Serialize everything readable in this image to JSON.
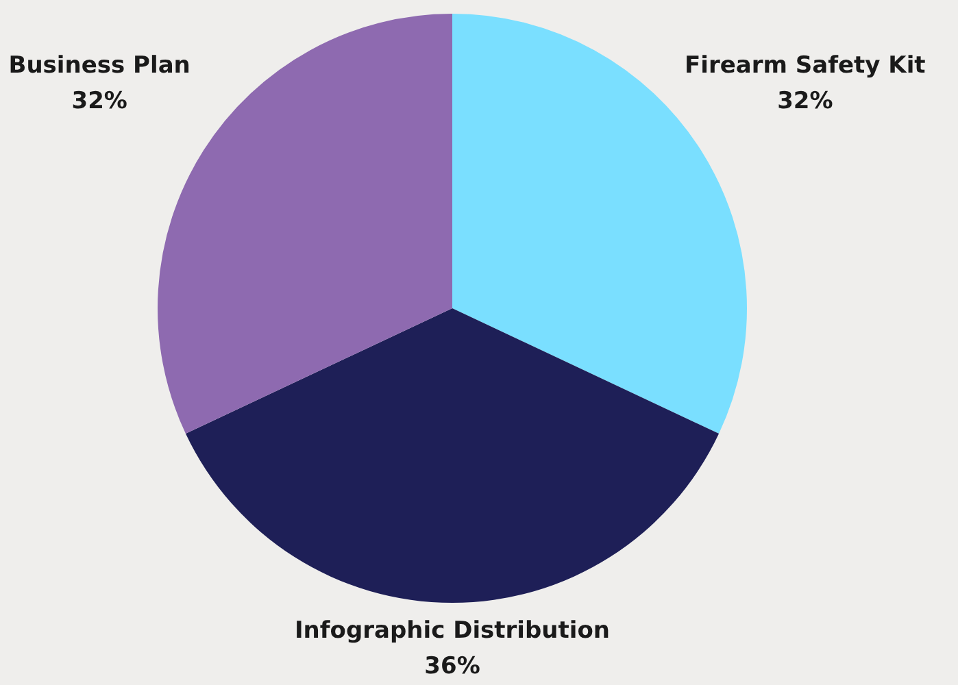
{
  "chart_data": {
    "type": "pie",
    "categories": [
      "Firearm Safety Kit",
      "Infographic Distribution",
      "Business Plan"
    ],
    "values": [
      32,
      36,
      32
    ],
    "colors": [
      "#7adfff",
      "#1e1f57",
      "#8e6ab0"
    ],
    "value_labels": [
      "32%",
      "36%",
      "32%"
    ]
  }
}
